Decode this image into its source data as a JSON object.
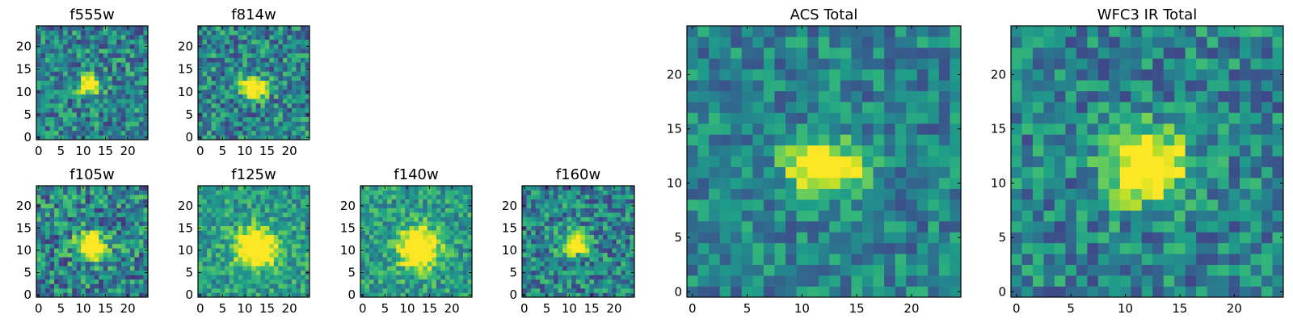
{
  "chart_data": [
    {
      "type": "heatmap",
      "title": "f555w",
      "xlim": [
        0,
        24
      ],
      "ylim": [
        0,
        24
      ],
      "xticks": [
        0,
        5,
        10,
        15,
        20
      ],
      "yticks": [
        0,
        5,
        10,
        15,
        20
      ],
      "colormap": "viridis",
      "source_center": [
        11.5,
        11.5
      ],
      "source_sigma": [
        1.6,
        1.4
      ],
      "noise": 0.45,
      "seed": 3
    },
    {
      "type": "heatmap",
      "title": "f814w",
      "xlim": [
        0,
        24
      ],
      "ylim": [
        0,
        24
      ],
      "xticks": [
        0,
        5,
        10,
        15,
        20
      ],
      "yticks": [
        0,
        5,
        10,
        15,
        20
      ],
      "colormap": "viridis",
      "source_center": [
        12,
        11
      ],
      "source_sigma": [
        2.2,
        1.5
      ],
      "noise": 0.45,
      "seed": 7
    },
    {
      "type": "heatmap",
      "title": "f105w",
      "xlim": [
        0,
        24
      ],
      "ylim": [
        0,
        24
      ],
      "xticks": [
        0,
        5,
        10,
        15,
        20
      ],
      "yticks": [
        0,
        5,
        10,
        15,
        20
      ],
      "colormap": "viridis",
      "source_center": [
        12,
        11
      ],
      "source_sigma": [
        2.3,
        2.0
      ],
      "noise": 0.5,
      "seed": 11
    },
    {
      "type": "heatmap",
      "title": "f125w",
      "xlim": [
        0,
        24
      ],
      "ylim": [
        0,
        24
      ],
      "xticks": [
        0,
        5,
        10,
        15,
        20
      ],
      "yticks": [
        0,
        5,
        10,
        15,
        20
      ],
      "colormap": "viridis",
      "source_center": [
        12.5,
        10.5
      ],
      "source_sigma": [
        3.0,
        3.0
      ],
      "noise": 0.35,
      "seed": 19,
      "background": 0.55
    },
    {
      "type": "heatmap",
      "title": "f140w",
      "xlim": [
        0,
        24
      ],
      "ylim": [
        0,
        24
      ],
      "xticks": [
        0,
        5,
        10,
        15,
        20
      ],
      "yticks": [
        0,
        5,
        10,
        15,
        20
      ],
      "colormap": "viridis",
      "source_center": [
        12.5,
        10.5
      ],
      "source_sigma": [
        3.0,
        3.0
      ],
      "noise": 0.35,
      "seed": 23,
      "background": 0.55
    },
    {
      "type": "heatmap",
      "title": "f160w",
      "xlim": [
        0,
        24
      ],
      "ylim": [
        0,
        24
      ],
      "xticks": [
        0,
        5,
        10,
        15,
        20
      ],
      "yticks": [
        0,
        5,
        10,
        15,
        20
      ],
      "colormap": "viridis",
      "source_center": [
        11.5,
        11.5
      ],
      "source_sigma": [
        2.0,
        1.6
      ],
      "noise": 0.45,
      "seed": 29
    },
    {
      "type": "heatmap",
      "title": "ACS Total",
      "xlim": [
        0,
        24
      ],
      "ylim": [
        0,
        24
      ],
      "xticks": [
        0,
        5,
        10,
        15,
        20
      ],
      "yticks": [
        0,
        5,
        10,
        15,
        20
      ],
      "colormap": "viridis",
      "source_center": [
        12,
        11.5
      ],
      "source_sigma": [
        2.3,
        1.5
      ],
      "noise": 0.35,
      "seed": 31
    },
    {
      "type": "heatmap",
      "title": "WFC3 IR Total",
      "xlim": [
        0,
        24
      ],
      "ylim": [
        0,
        24
      ],
      "xticks": [
        0,
        5,
        10,
        15,
        20
      ],
      "yticks": [
        0,
        5,
        10,
        15,
        20
      ],
      "colormap": "viridis",
      "source_center": [
        12,
        11.5
      ],
      "source_sigma": [
        2.4,
        2.2
      ],
      "noise": 0.4,
      "seed": 37
    }
  ]
}
